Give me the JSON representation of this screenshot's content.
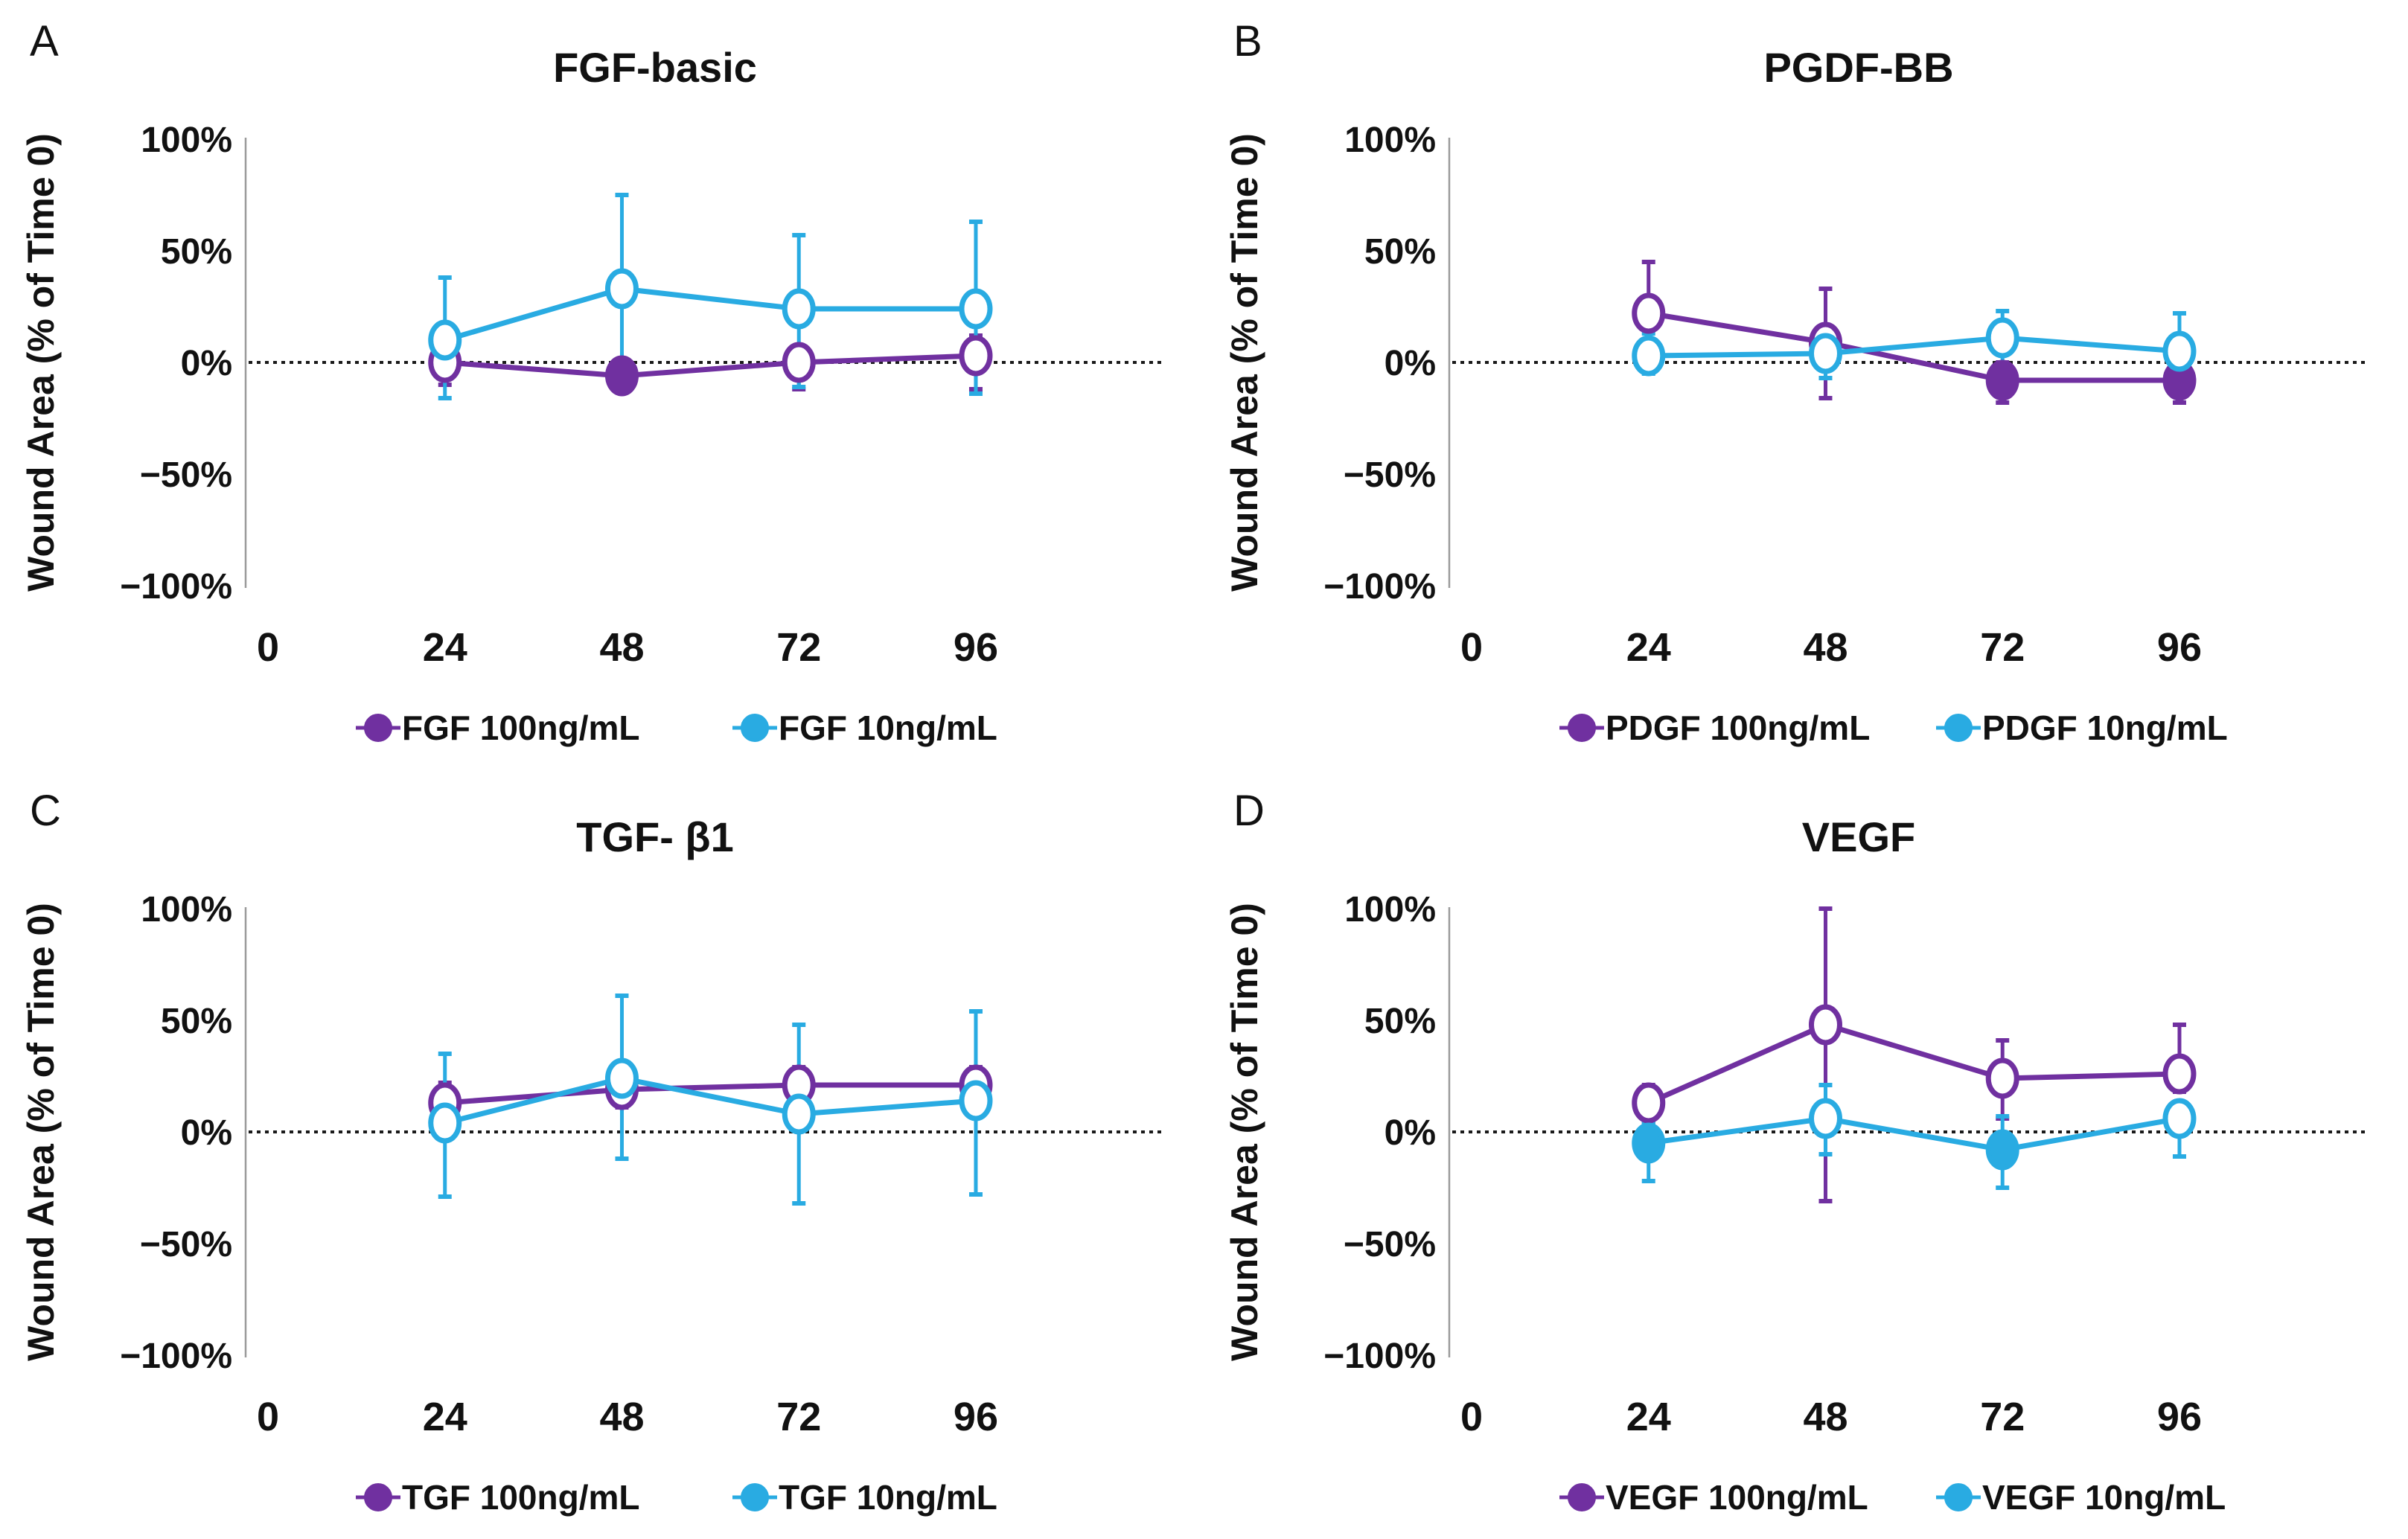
{
  "figure": {
    "background": "#ffffff",
    "series_colors": {
      "purple_100ng": "#7030A0",
      "cyan_10ng": "#29ABE2"
    },
    "zero_line_color": "#1a1a1a",
    "axis_spine_color": "#9b9b9b",
    "text_color": "#111111"
  },
  "panels": [
    {
      "letter": "A",
      "title": "FGF-basic"
    },
    {
      "letter": "B",
      "title": "PGDF-BB"
    },
    {
      "letter": "C",
      "title": "TGF- β1"
    },
    {
      "letter": "D",
      "title": "VEGF"
    }
  ],
  "chart_data": [
    {
      "type": "line",
      "title": "FGF-basic",
      "x": [
        24,
        48,
        72,
        96
      ],
      "x_axis_ticks": [
        "0",
        "24",
        "48",
        "72",
        "96"
      ],
      "ylabel": "Wound Area (% of Time 0)",
      "ytick_labels": [
        "100%",
        "50%",
        "0%",
        "−50%",
        "−100%"
      ],
      "ytick_values": [
        100,
        50,
        0,
        -50,
        -100
      ],
      "ylim": [
        -100,
        100
      ],
      "zero_line": true,
      "legend_position": "bottom",
      "series": [
        {
          "name": "FGF 100ng/mL",
          "color": "#7030A0",
          "values": [
            0,
            -6,
            0,
            3
          ],
          "filled": [
            false,
            true,
            false,
            false
          ],
          "err_up": [
            8,
            4,
            6,
            9
          ],
          "err_down": [
            10,
            4,
            12,
            15
          ]
        },
        {
          "name": "FGF 10ng/mL",
          "color": "#29ABE2",
          "values": [
            10,
            33,
            24,
            24
          ],
          "filled": [
            false,
            false,
            false,
            false
          ],
          "err_up": [
            28,
            42,
            33,
            39
          ],
          "err_down": [
            26,
            43,
            35,
            38
          ]
        }
      ]
    },
    {
      "type": "line",
      "title": "PGDF-BB",
      "x": [
        24,
        48,
        72,
        96
      ],
      "x_axis_ticks": [
        "0",
        "24",
        "48",
        "72",
        "96"
      ],
      "ylabel": "Wound Area (% of Time 0)",
      "ytick_labels": [
        "100%",
        "50%",
        "0%",
        "−50%",
        "−100%"
      ],
      "ytick_values": [
        100,
        50,
        0,
        -50,
        -100
      ],
      "ylim": [
        -100,
        100
      ],
      "zero_line": true,
      "legend_position": "bottom",
      "series": [
        {
          "name": "PDGF 100ng/mL",
          "color": "#7030A0",
          "values": [
            22,
            9,
            -8,
            -8
          ],
          "filled": [
            false,
            false,
            true,
            true
          ],
          "err_up": [
            23,
            24,
            8,
            8
          ],
          "err_down": [
            18,
            25,
            10,
            10
          ]
        },
        {
          "name": "PDGF 10ng/mL",
          "color": "#29ABE2",
          "values": [
            3,
            4,
            11,
            5
          ],
          "filled": [
            false,
            false,
            false,
            false
          ],
          "err_up": [
            10,
            8,
            12,
            17
          ],
          "err_down": [
            8,
            11,
            14,
            16
          ]
        }
      ]
    },
    {
      "type": "line",
      "title": "TGF- β1",
      "x": [
        24,
        48,
        72,
        96
      ],
      "x_axis_ticks": [
        "0",
        "24",
        "48",
        "72",
        "96"
      ],
      "ylabel": "Wound Area (% of Time 0)",
      "ytick_labels": [
        "100%",
        "50%",
        "0%",
        "−50%",
        "−100%"
      ],
      "ytick_values": [
        100,
        50,
        0,
        -50,
        -100
      ],
      "ylim": [
        -100,
        100
      ],
      "zero_line": true,
      "legend_position": "bottom",
      "series": [
        {
          "name": "TGF 100ng/mL",
          "color": "#7030A0",
          "values": [
            13,
            19,
            21,
            21
          ],
          "filled": [
            false,
            false,
            false,
            false
          ],
          "err_up": [
            9,
            8,
            8,
            8
          ],
          "err_down": [
            10,
            8,
            8,
            8
          ]
        },
        {
          "name": "TGF 10ng/mL",
          "color": "#29ABE2",
          "values": [
            4,
            24,
            8,
            14
          ],
          "filled": [
            false,
            false,
            false,
            false
          ],
          "err_up": [
            31,
            37,
            40,
            40
          ],
          "err_down": [
            33,
            36,
            40,
            42
          ]
        }
      ]
    },
    {
      "type": "line",
      "title": "VEGF",
      "x": [
        24,
        48,
        72,
        96
      ],
      "x_axis_ticks": [
        "0",
        "24",
        "48",
        "72",
        "96"
      ],
      "ylabel": "Wound Area (% of Time 0)",
      "ytick_labels": [
        "100%",
        "50%",
        "0%",
        "−50%",
        "−100%"
      ],
      "ytick_values": [
        100,
        50,
        0,
        -50,
        -100
      ],
      "ylim": [
        -100,
        100
      ],
      "zero_line": true,
      "legend_position": "bottom",
      "series": [
        {
          "name": "VEGF 100ng/mL",
          "color": "#7030A0",
          "values": [
            13,
            48,
            24,
            26
          ],
          "filled": [
            false,
            false,
            false,
            false
          ],
          "err_up": [
            8,
            52,
            17,
            22
          ],
          "err_down": [
            9,
            79,
            18,
            8
          ]
        },
        {
          "name": "VEGF 10ng/mL",
          "color": "#29ABE2",
          "values": [
            -5,
            6,
            -8,
            6
          ],
          "filled": [
            true,
            false,
            true,
            false
          ],
          "err_up": [
            9,
            15,
            15,
            5
          ],
          "err_down": [
            17,
            16,
            17,
            17
          ]
        }
      ]
    }
  ]
}
